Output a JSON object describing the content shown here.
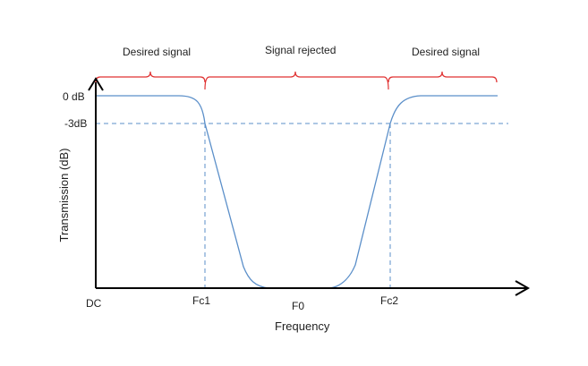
{
  "regions": {
    "left": "Desired signal",
    "middle": "Signal rejected",
    "right": "Desired signal"
  },
  "y_axis": {
    "label": "Transmission (dB)",
    "ticks": {
      "top": "0 dB",
      "cutoff": "-3dB"
    }
  },
  "x_axis": {
    "label": "Frequency",
    "ticks": {
      "dc": "DC",
      "fc1": "Fc1",
      "f0": "F0",
      "fc2": "Fc2"
    }
  },
  "colors": {
    "curve": "#5b8fc9",
    "dashed": "#5b8fc9",
    "brace": "#e03030",
    "axis": "#000000",
    "text": "#1f1f1f"
  },
  "chart_data": {
    "type": "line",
    "title": "",
    "xlabel": "Frequency",
    "ylabel": "Transmission (dB)",
    "x_ticks": [
      "DC",
      "Fc1",
      "F0",
      "Fc2"
    ],
    "y_ticks": [
      "0 dB",
      "-3dB"
    ],
    "series": [
      {
        "points": [
          [
            "DC",
            0
          ],
          [
            "Fc1",
            -3
          ],
          [
            "F0",
            null
          ],
          [
            "Fc2",
            -3
          ]
        ]
      }
    ]
  }
}
